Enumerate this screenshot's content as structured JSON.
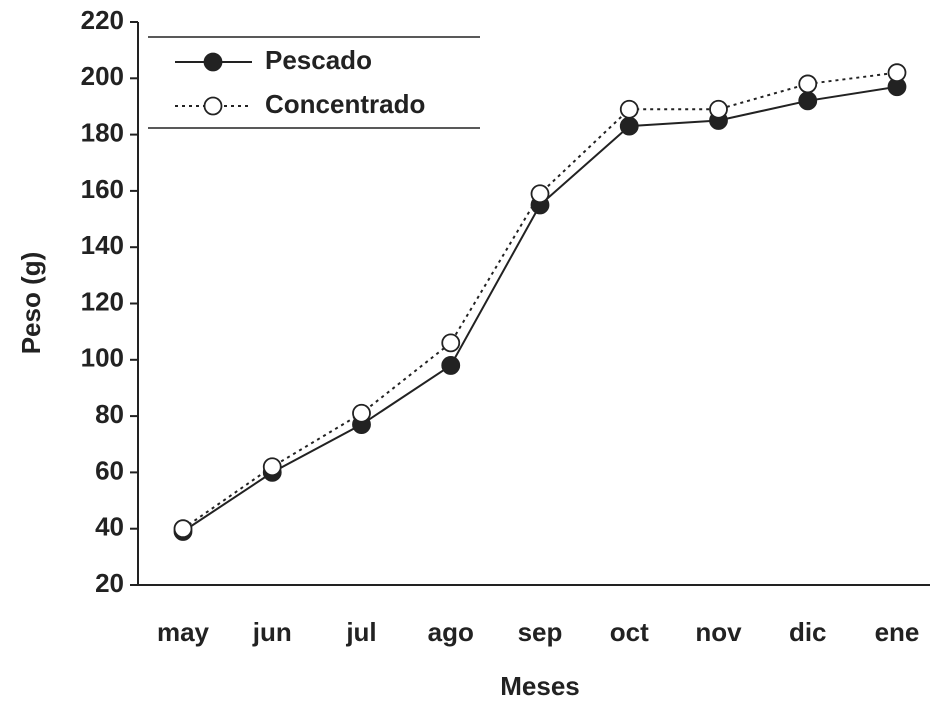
{
  "chart_data": {
    "type": "line",
    "x_label": "Meses",
    "y_label": "Peso (g)",
    "categories": [
      "may",
      "jun",
      "jul",
      "ago",
      "sep",
      "oct",
      "nov",
      "dic",
      "ene"
    ],
    "series": [
      {
        "name": "Pescado",
        "color": "#222222",
        "marker": "filled",
        "dash": "solid",
        "values": [
          39,
          60,
          77,
          98,
          155,
          183,
          185,
          192,
          197
        ]
      },
      {
        "name": "Concentrado",
        "color": "#222222",
        "marker": "open",
        "dash": "dotted",
        "values": [
          40,
          62,
          81,
          106,
          159,
          189,
          189,
          198,
          202
        ]
      }
    ],
    "ylim": [
      20,
      220
    ],
    "yticks": [
      20,
      40,
      60,
      80,
      100,
      120,
      140,
      160,
      180,
      200,
      220
    ],
    "legend": "upper left",
    "grid": false
  }
}
